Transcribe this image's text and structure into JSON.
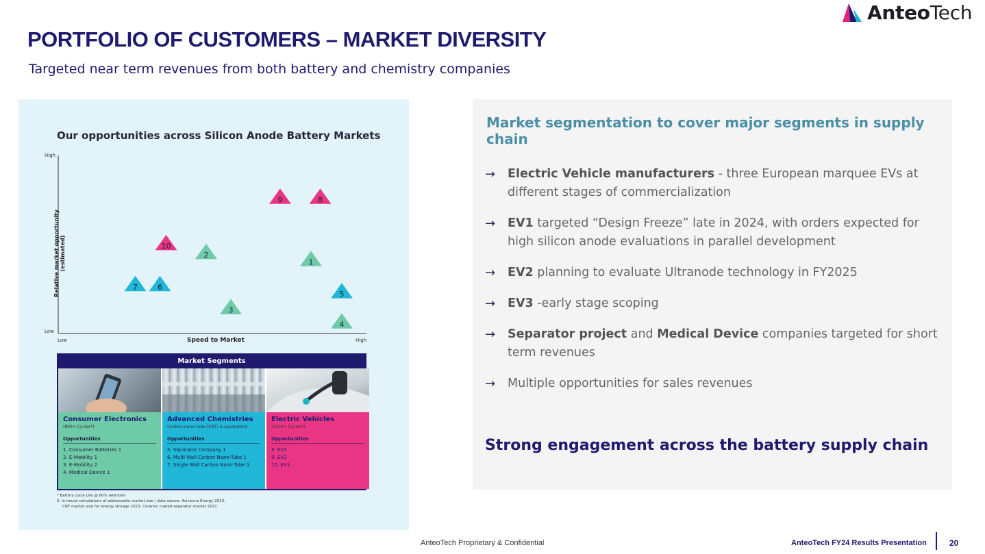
{
  "brand": {
    "name_bold": "Anteo",
    "name_light": "Tech",
    "color_pink": "#e8207a",
    "color_teal": "#1cb5c9",
    "color_navy": "#1f1a6e"
  },
  "header": {
    "title": "PORTFOLIO OF CUSTOMERS – MARKET DIVERSITY",
    "subtitle": "Targeted near term revenues from both battery and chemistry companies"
  },
  "figure": {
    "title": "Our opportunities across Silicon Anode Battery Markets",
    "y_axis_title": "Relative market opportunity (estimated)",
    "x_axis_title": "Speed to Market",
    "y_high": "High",
    "y_low": "Low",
    "x_low": "Low",
    "x_high": "High",
    "segments_title": "Market Segments",
    "segments": [
      {
        "name": "Consumer Electronics",
        "sub": "(800+ Cycles*)",
        "opp_label": "Opportunities",
        "items": [
          "1. Consumer Batteries 1",
          "2. E-Mobility 1",
          "3. E-Mobility 2",
          "4. Medical Device 1"
        ],
        "color": "#6ecaa7"
      },
      {
        "name": "Advanced Chemistries",
        "sub": "(carbon nano-tube (CNT) & separators)",
        "opp_label": "Opportunities",
        "items": [
          "5. Separator Company 1",
          "6. Multi Wall Carbon Nano-Tube 1",
          "7. Single Wall Carbon Nano-Tube 1"
        ],
        "color": "#20b7d8"
      },
      {
        "name": "Electric Vehicles",
        "sub": "(1000+ Cycles*)",
        "opp_label": "Opportunities",
        "items": [
          "8. EV1",
          "9. EV2",
          "10. EV3"
        ],
        "color": "#ea3585"
      }
    ],
    "footnote_1": "* Battery cycle Life @ 80% retention",
    "footnote_2": "2. In-house calculations of addressable market size / data source: Avicenne Energy 2023,",
    "footnote_3": "CNT market size for energy storage 2023, Ceramic coated separator market 2021"
  },
  "chart_data": {
    "type": "scatter",
    "title": "Our opportunities across Silicon Anode Battery Markets",
    "xlabel": "Speed to Market",
    "ylabel": "Relative market opportunity (estimated)",
    "xlim": [
      0,
      10
    ],
    "ylim": [
      0,
      10
    ],
    "series": [
      {
        "name": "Consumer Electronics",
        "color": "#6ecaa7",
        "points": [
          {
            "label": "1",
            "x": 8.2,
            "y": 4.1
          },
          {
            "label": "2",
            "x": 4.8,
            "y": 4.5
          },
          {
            "label": "3",
            "x": 5.6,
            "y": 1.4
          },
          {
            "label": "4",
            "x": 9.2,
            "y": 0.6
          }
        ]
      },
      {
        "name": "Advanced Chemistries",
        "color": "#20b7d8",
        "points": [
          {
            "label": "5",
            "x": 9.2,
            "y": 2.3
          },
          {
            "label": "6",
            "x": 3.3,
            "y": 2.7
          },
          {
            "label": "7",
            "x": 2.5,
            "y": 2.7
          }
        ]
      },
      {
        "name": "Electric Vehicles",
        "color": "#ea3585",
        "points": [
          {
            "label": "8",
            "x": 8.5,
            "y": 7.6
          },
          {
            "label": "9",
            "x": 7.2,
            "y": 7.6
          },
          {
            "label": "10",
            "x": 3.5,
            "y": 5.0
          }
        ]
      }
    ]
  },
  "panel": {
    "heading": "Market segmentation to cover major segments in supply chain",
    "bullets": [
      {
        "bold": "Electric Vehicle manufacturers",
        "rest": " - three European marquee EVs at different stages of commercialization"
      },
      {
        "bold": "EV1",
        "rest": " targeted “Design Freeze” late in 2024, with  orders expected for high silicon anode evaluations in parallel development"
      },
      {
        "bold": "EV2",
        "rest": " planning to evaluate Ultranode technology in FY2025"
      },
      {
        "bold": "EV3",
        "rest": " -early stage scoping"
      },
      {
        "bold": "Separator project",
        "mid": " and ",
        "bold2": "Medical Device",
        "rest": " companies targeted for short term revenues"
      },
      {
        "bold": "",
        "rest": "Multiple opportunities for sales revenues"
      }
    ],
    "footer": "Strong engagement across the battery supply chain"
  },
  "footer": {
    "confidential": "AnteoTech Proprietary & Confidential",
    "presentation": "AnteoTech FY24 Results Presentation",
    "page": "20"
  }
}
